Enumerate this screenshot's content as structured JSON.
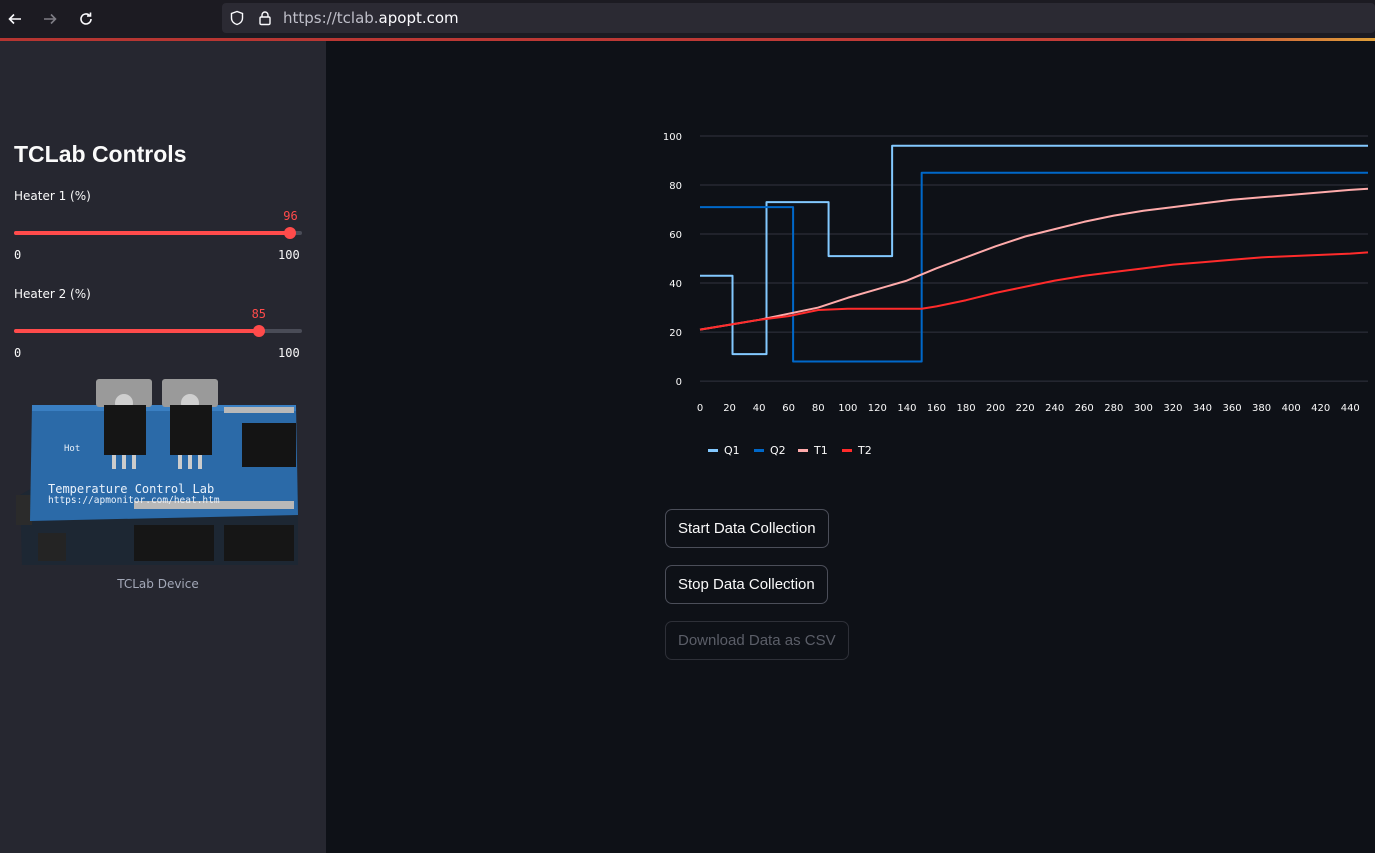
{
  "browser": {
    "url_prefix": "https://tclab.",
    "url_domain": "apopt.com"
  },
  "sidebar": {
    "title": "TCLab Controls",
    "sliders": [
      {
        "label": "Heater 1 (%)",
        "value": "96",
        "min": "0",
        "max": "100",
        "fraction": 0.96
      },
      {
        "label": "Heater 2 (%)",
        "value": "85",
        "min": "0",
        "max": "100",
        "fraction": 0.85
      }
    ],
    "image_caption": "TCLab Device",
    "board_text_1": "Temperature Control Lab",
    "board_text_2": "https://apmonitor.com/heat.htm",
    "board_text_hot": "Hot"
  },
  "buttons": {
    "start": "Start Data Collection",
    "stop": "Stop Data Collection",
    "download": "Download Data as CSV"
  },
  "colors": {
    "accent": "#ff4b4b",
    "q1": "#83c9ff",
    "q2": "#0068c9",
    "t1": "#ffabab",
    "t2": "#ff2b2b"
  },
  "chart_data": {
    "type": "line",
    "x_ticks": [
      "0",
      "20",
      "40",
      "60",
      "80",
      "100",
      "120",
      "140",
      "160",
      "180",
      "200",
      "220",
      "240",
      "260",
      "280",
      "300",
      "320",
      "340",
      "360",
      "380",
      "400",
      "420",
      "440"
    ],
    "y_ticks": [
      "0",
      "20",
      "40",
      "60",
      "80",
      "100"
    ],
    "xlim": [
      0,
      452
    ],
    "ylim": [
      -2,
      100
    ],
    "grid": true,
    "legend_position": "bottom-left",
    "series": [
      {
        "name": "Q1",
        "color": "#83c9ff",
        "step": true,
        "x": [
          0,
          22,
          45,
          87,
          130,
          452
        ],
        "y": [
          43,
          11,
          73,
          51,
          96,
          96
        ]
      },
      {
        "name": "Q2",
        "color": "#0068c9",
        "step": true,
        "x": [
          0,
          63,
          150,
          452
        ],
        "y": [
          71,
          8,
          85,
          85
        ]
      },
      {
        "name": "T1",
        "color": "#ffabab",
        "step": false,
        "x": [
          0,
          20,
          40,
          60,
          80,
          100,
          120,
          140,
          160,
          180,
          200,
          220,
          240,
          260,
          280,
          300,
          320,
          340,
          360,
          380,
          400,
          420,
          440,
          452
        ],
        "y": [
          21,
          23,
          25,
          27.5,
          30,
          34,
          37.5,
          41,
          46,
          50.5,
          55,
          59,
          62,
          65,
          67.5,
          69.5,
          71,
          72.5,
          74,
          75,
          76,
          77,
          78,
          78.5
        ]
      },
      {
        "name": "T2",
        "color": "#ff2b2b",
        "step": false,
        "x": [
          0,
          20,
          40,
          60,
          80,
          100,
          120,
          140,
          150,
          160,
          180,
          200,
          220,
          240,
          260,
          280,
          300,
          320,
          340,
          360,
          380,
          400,
          420,
          440,
          452
        ],
        "y": [
          21,
          23,
          25,
          26.5,
          29,
          29.5,
          29.5,
          29.5,
          29.5,
          30.5,
          33,
          36,
          38.5,
          41,
          43,
          44.5,
          46,
          47.5,
          48.5,
          49.5,
          50.5,
          51,
          51.5,
          52,
          52.5
        ]
      }
    ]
  }
}
